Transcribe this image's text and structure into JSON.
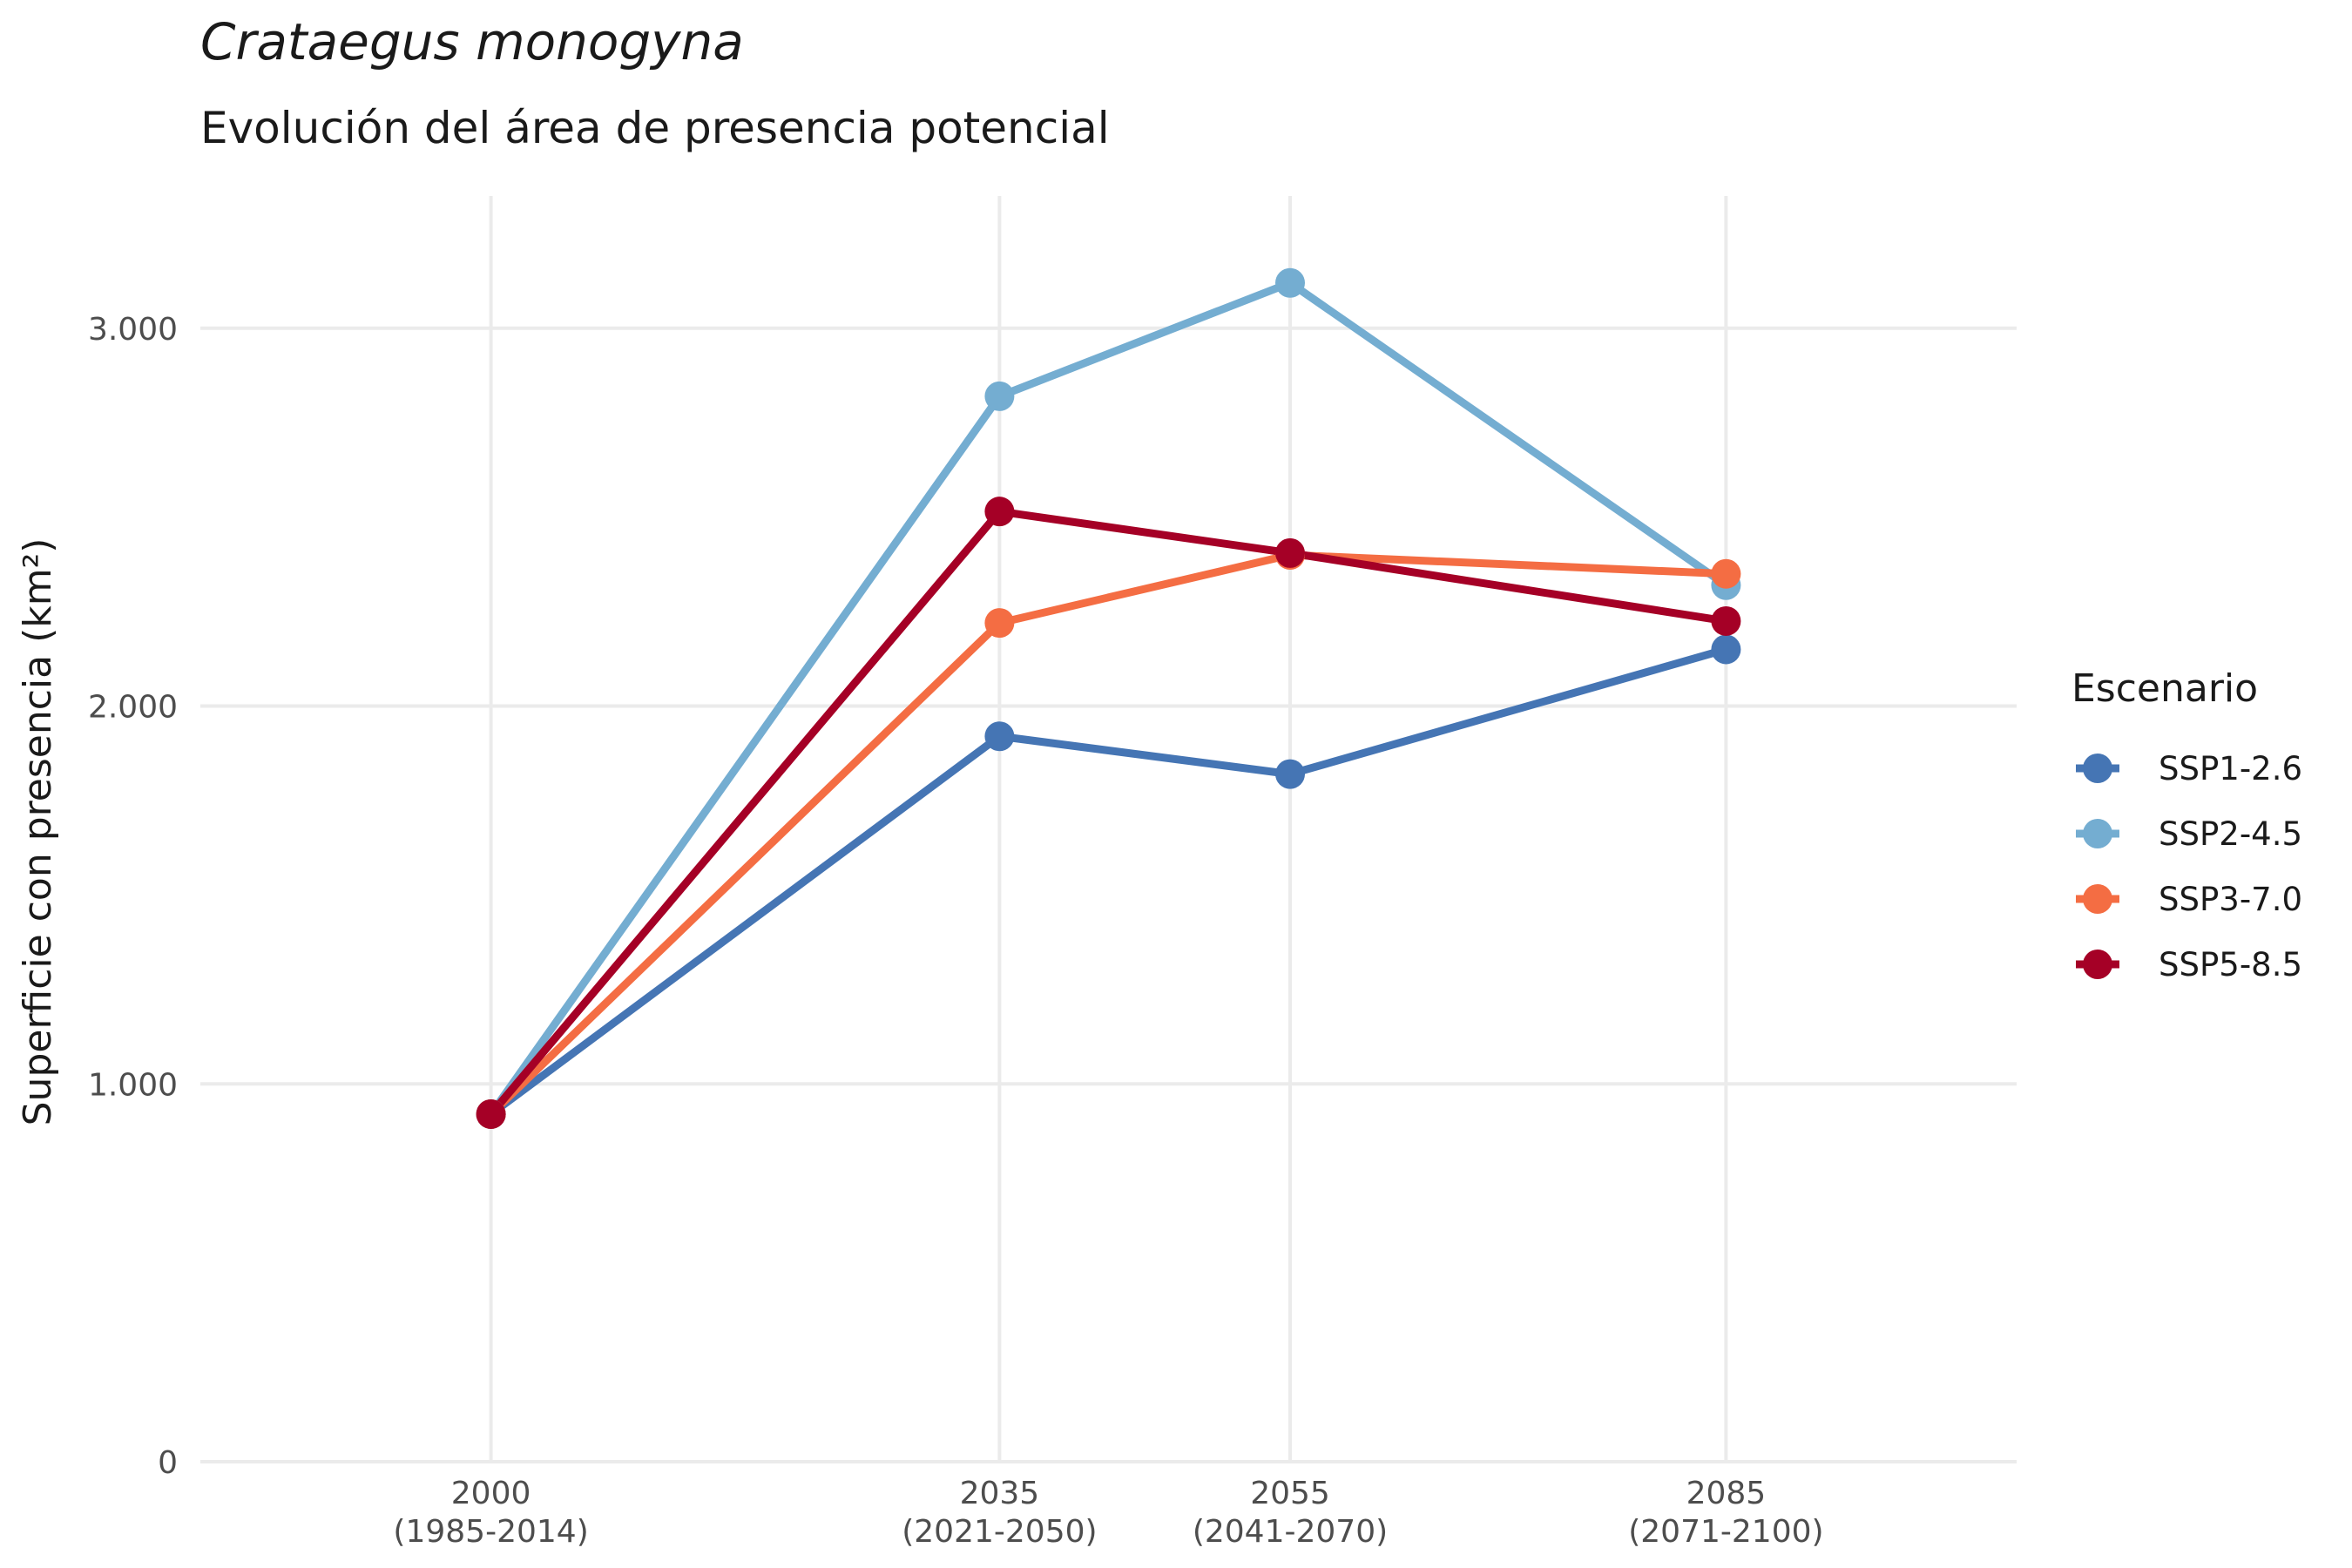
{
  "title": "Crataegus monogyna",
  "subtitle": "Evolución del área de presencia potencial",
  "chart_data": {
    "type": "line",
    "title": "Crataegus monogyna",
    "subtitle": "Evolución del área de presencia potencial",
    "ylabel": "Superficie con presencia (km²)",
    "xlabel": "",
    "x": [
      2000,
      2035,
      2055,
      2085
    ],
    "x_tick_labels": [
      [
        "2000",
        "(1985-2014)"
      ],
      [
        "2035",
        "(2021-2050)"
      ],
      [
        "2055",
        "(2041-2070)"
      ],
      [
        "2085",
        "(2071-2100)"
      ]
    ],
    "xlim": [
      1980,
      2105
    ],
    "ylim": [
      0,
      3350
    ],
    "y_ticks": [
      0,
      1000,
      2000,
      3000
    ],
    "y_tick_labels": [
      "0",
      "1.000",
      "2.000",
      "3.000"
    ],
    "grid": true,
    "legend_title": "Escenario",
    "legend_position": "right",
    "series": [
      {
        "name": "SSP1-2.6",
        "color": "#4575b4",
        "values": [
          920,
          1920,
          1820,
          2150
        ]
      },
      {
        "name": "SSP2-4.5",
        "color": "#74add1",
        "values": [
          920,
          2820,
          3120,
          2320
        ]
      },
      {
        "name": "SSP3-7.0",
        "color": "#f46d43",
        "values": [
          920,
          2220,
          2400,
          2350
        ]
      },
      {
        "name": "SSP5-8.5",
        "color": "#a50026",
        "values": [
          920,
          2515,
          2405,
          2225
        ]
      }
    ]
  }
}
